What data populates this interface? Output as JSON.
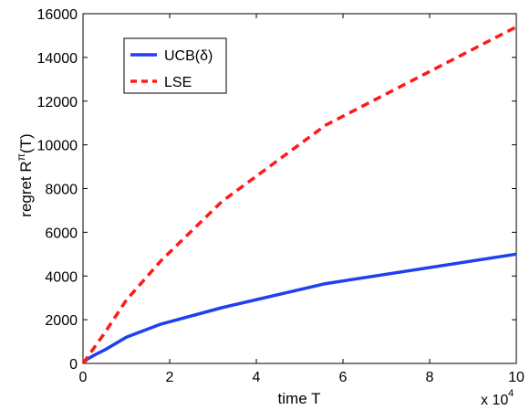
{
  "chart_data": {
    "type": "line",
    "xlabel": "time T",
    "ylabel": "regret R",
    "ylabel_superscript": "π",
    "ylabel_suffix": "(T)",
    "x_multiplier": "x 10",
    "x_multiplier_exponent": "4",
    "xlim": [
      0,
      10
    ],
    "ylim": [
      0,
      16000
    ],
    "xticks": [
      0,
      2,
      4,
      6,
      8,
      10
    ],
    "xtick_labels": [
      "0",
      "2",
      "4",
      "6",
      "8",
      "10"
    ],
    "yticks": [
      0,
      2000,
      4000,
      6000,
      8000,
      10000,
      12000,
      14000,
      16000
    ],
    "ytick_labels": [
      "0",
      "2000",
      "4000",
      "6000",
      "8000",
      "10000",
      "12000",
      "14000",
      "16000"
    ],
    "grid": false,
    "legend_position": "top-left",
    "series": [
      {
        "name": "UCB(δ)",
        "color": "#1f3ff0",
        "style": "solid",
        "x": [
          0,
          0.1,
          0.3,
          0.5,
          1.0,
          1.8,
          3.2,
          5.6,
          10.0
        ],
        "y": [
          0,
          200,
          420,
          620,
          1200,
          1800,
          2550,
          3650,
          5000
        ]
      },
      {
        "name": "LSE",
        "color": "#ff1a1a",
        "style": "dashed",
        "x": [
          0,
          0.5,
          1.0,
          1.8,
          3.2,
          5.6,
          10.0
        ],
        "y": [
          0,
          1400,
          2900,
          4700,
          7400,
          10900,
          15400
        ]
      }
    ]
  }
}
